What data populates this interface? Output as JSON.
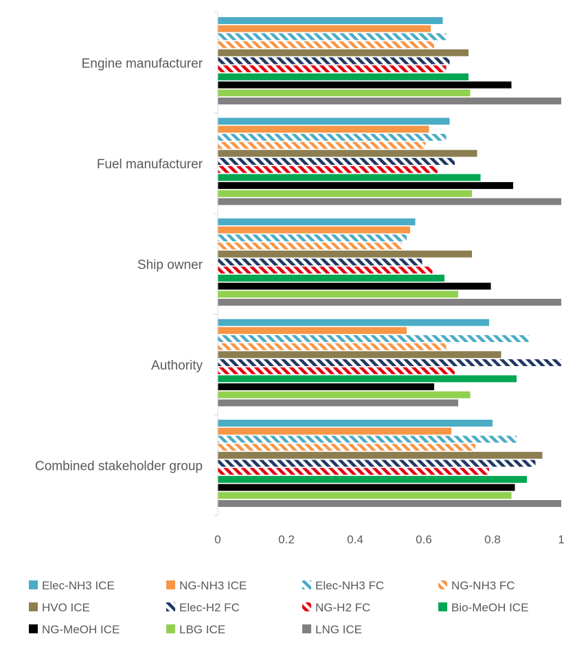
{
  "chart_data": {
    "type": "bar",
    "orientation": "horizontal",
    "categories": [
      "Engine manufacturer",
      "Fuel manufacturer",
      "Ship owner",
      "Authority",
      "Combined stakeholder group"
    ],
    "xlim": [
      0,
      1
    ],
    "xticks": [
      0,
      0.2,
      0.4,
      0.6,
      0.8,
      1
    ],
    "xtick_labels": [
      "0",
      "0.2",
      "0.4",
      "0.6",
      "0.8",
      "1"
    ],
    "title": "",
    "xlabel": "",
    "ylabel": "",
    "grid": false,
    "legend_position": "bottom",
    "series": [
      {
        "name": "Elec-NH3 ICE",
        "color": "#4bacc6",
        "pattern": "solid",
        "values": [
          0.655,
          0.675,
          0.575,
          0.79,
          0.8
        ]
      },
      {
        "name": "NG-NH3 ICE",
        "color": "#f79646",
        "pattern": "solid",
        "values": [
          0.62,
          0.615,
          0.56,
          0.55,
          0.68
        ]
      },
      {
        "name": "Elec-NH3 FC",
        "color": "#4bacc6",
        "pattern": "hatch",
        "values": [
          0.665,
          0.665,
          0.55,
          0.905,
          0.87
        ]
      },
      {
        "name": "NG-NH3 FC",
        "color": "#f79646",
        "pattern": "hatch",
        "values": [
          0.63,
          0.605,
          0.535,
          0.665,
          0.75
        ]
      },
      {
        "name": "HVO ICE",
        "color": "#8c7e50",
        "pattern": "solid",
        "values": [
          0.73,
          0.755,
          0.74,
          0.825,
          0.945
        ]
      },
      {
        "name": "Elec-H2 FC",
        "color": "#1f3864",
        "pattern": "hatch",
        "values": [
          0.675,
          0.69,
          0.595,
          1.0,
          0.925
        ]
      },
      {
        "name": "NG-H2 FC",
        "color": "#e3000f",
        "pattern": "hatch",
        "values": [
          0.665,
          0.64,
          0.625,
          0.69,
          0.79
        ]
      },
      {
        "name": "Bio-MeOH ICE",
        "color": "#00a651",
        "pattern": "solid",
        "values": [
          0.73,
          0.765,
          0.66,
          0.87,
          0.9
        ]
      },
      {
        "name": "NG-MeOH ICE",
        "color": "#000000",
        "pattern": "solid",
        "values": [
          0.855,
          0.86,
          0.795,
          0.63,
          0.865
        ]
      },
      {
        "name": "LBG ICE",
        "color": "#92d050",
        "pattern": "solid",
        "values": [
          0.735,
          0.74,
          0.7,
          0.735,
          0.855
        ]
      },
      {
        "name": "LNG ICE",
        "color": "#808080",
        "pattern": "solid",
        "values": [
          1.0,
          1.0,
          1.0,
          0.7,
          1.0
        ]
      }
    ]
  }
}
